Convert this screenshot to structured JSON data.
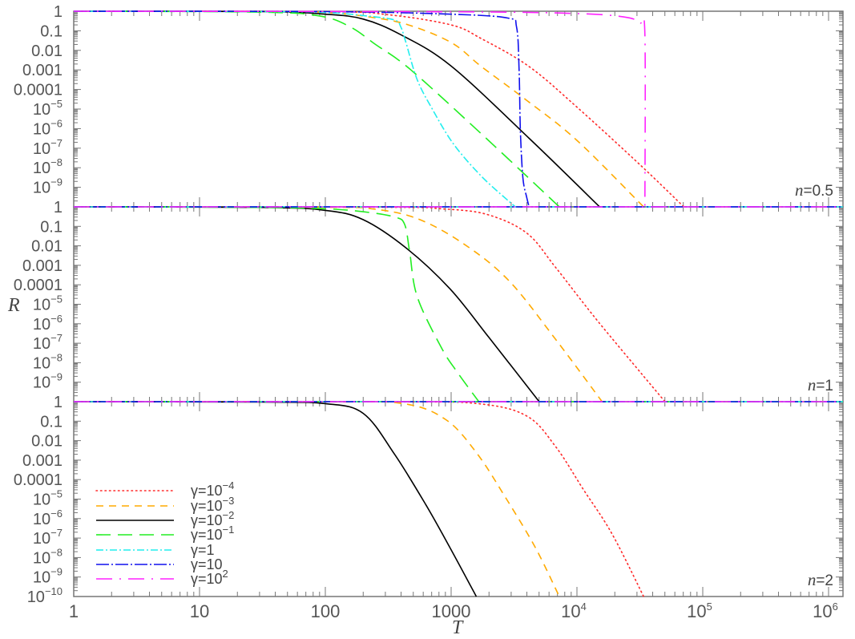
{
  "chart_data": {
    "type": "line",
    "xlabel": "T",
    "ylabel": "R",
    "x_scale": "log",
    "y_scale": "log",
    "xlim": [
      1,
      1300000
    ],
    "ylim": [
      1e-10,
      1
    ],
    "grid": false,
    "legend_placement": "bottom-left of lowest panel",
    "x_tick_labels": [
      {
        "value": 1,
        "base": "1",
        "exp": ""
      },
      {
        "value": 10,
        "base": "10",
        "exp": ""
      },
      {
        "value": 100,
        "base": "100",
        "exp": ""
      },
      {
        "value": 1000,
        "base": "1000",
        "exp": ""
      },
      {
        "value": 10000,
        "base": "10",
        "exp": "4"
      },
      {
        "value": 100000,
        "base": "10",
        "exp": "5"
      },
      {
        "value": 1000000,
        "base": "10",
        "exp": "6"
      }
    ],
    "y_tick_labels": [
      {
        "value": 1,
        "base": "1",
        "exp": ""
      },
      {
        "value": 0.1,
        "base": "0.1",
        "exp": ""
      },
      {
        "value": 0.01,
        "base": "0.01",
        "exp": ""
      },
      {
        "value": 0.001,
        "base": "0.001",
        "exp": ""
      },
      {
        "value": 0.0001,
        "base": "0.0001",
        "exp": ""
      },
      {
        "value": 1e-05,
        "base": "10",
        "exp": "−5"
      },
      {
        "value": 1e-06,
        "base": "10",
        "exp": "−6"
      },
      {
        "value": 1e-07,
        "base": "10",
        "exp": "−7"
      },
      {
        "value": 1e-08,
        "base": "10",
        "exp": "−8"
      },
      {
        "value": 1e-09,
        "base": "10",
        "exp": "−9"
      },
      {
        "value": 1e-10,
        "base": "10",
        "exp": "−10"
      }
    ],
    "legend": [
      {
        "prefix": "γ=",
        "base": "10",
        "exp": "−4",
        "color": "#ff2a2a",
        "dash": "dotted"
      },
      {
        "prefix": "γ=",
        "base": "10",
        "exp": "−3",
        "color": "#ffaa00",
        "dash": "dashed"
      },
      {
        "prefix": "γ=",
        "base": "10",
        "exp": "−2",
        "color": "#000000",
        "dash": "solid"
      },
      {
        "prefix": "γ=",
        "base": "10",
        "exp": "−1",
        "color": "#22ee22",
        "dash": "long-dash"
      },
      {
        "prefix": "γ=",
        "base": "1",
        "exp": "",
        "color": "#22eeee",
        "dash": "dash-dot"
      },
      {
        "prefix": "γ=",
        "base": "10",
        "exp": "",
        "color": "#1010ee",
        "dash": "long-dash-dot"
      },
      {
        "prefix": "γ=",
        "base": "10",
        "exp": "2",
        "color": "#ff22ff",
        "dash": "long-short-dash"
      }
    ],
    "panels": [
      {
        "label_var": "n",
        "label_value": "=0.5",
        "series": [
          {
            "name": "γ=10⁻⁴",
            "points": [
              [
                1,
                1
              ],
              [
                100,
                0.955
              ],
              [
                316,
                0.661
              ],
              [
                1000,
                0.2
              ],
              [
                1738,
                0.0398
              ],
              [
                4169,
                0.00148
              ],
              [
                10000,
                1.26e-05
              ],
              [
                32360,
                1.26e-08
              ],
              [
                70790,
                1e-10
              ]
            ]
          },
          {
            "name": "γ=10⁻³",
            "points": [
              [
                1,
                1
              ],
              [
                31.6,
                0.977
              ],
              [
                100,
                0.871
              ],
              [
                200,
                0.562
              ],
              [
                437,
                0.219
              ],
              [
                1000,
                0.0251
              ],
              [
                1738,
                0.00148
              ],
              [
                3981,
                2.8e-05
              ],
              [
                10000,
                2.5e-07
              ],
              [
                33880,
                1e-10
              ]
            ]
          },
          {
            "name": "γ=10⁻²",
            "points": [
              [
                1,
                1
              ],
              [
                31.6,
                0.955
              ],
              [
                100,
                0.708
              ],
              [
                200,
                0.398
              ],
              [
                398,
                0.063
              ],
              [
                1000,
                0.00158
              ],
              [
                4169,
                3.2e-07
              ],
              [
                15140,
                1e-10
              ]
            ]
          },
          {
            "name": "γ=10⁻¹",
            "points": [
              [
                1,
                1
              ],
              [
                31.6,
                0.891
              ],
              [
                91.2,
                0.562
              ],
              [
                158,
                0.158
              ],
              [
                251,
                0.02
              ],
              [
                479,
                0.001
              ],
              [
                1738,
                5.4e-07
              ],
              [
                7244,
                1e-10
              ]
            ]
          },
          {
            "name": "γ=1",
            "points": [
              [
                1,
                1
              ],
              [
                31.6,
                0.955
              ],
              [
                100,
                0.871
              ],
              [
                219,
                0.562
              ],
              [
                355,
                0.355
              ],
              [
                398,
                0.158
              ],
              [
                437,
                0.0251
              ],
              [
                537,
                0.00032
              ],
              [
                708,
                1e-05
              ],
              [
                1047,
                1.6e-07
              ],
              [
                1778,
                3.2e-09
              ],
              [
                3236,
                1e-10
              ]
            ]
          },
          {
            "name": "γ=10",
            "points": [
              [
                1,
                1
              ],
              [
                100,
                0.955
              ],
              [
                1000,
                0.708
              ],
              [
                2818,
                0.447
              ],
              [
                3311,
                0.158
              ],
              [
                3467,
                0.001
              ],
              [
                3548,
                1e-06
              ],
              [
                3715,
                3.2e-09
              ],
              [
                3981,
                3.2e-10
              ],
              [
                4169,
                1e-10
              ]
            ]
          },
          {
            "name": "γ=10²",
            "points": [
              [
                1,
                1
              ],
              [
                1000,
                0.933
              ],
              [
                10000,
                0.759
              ],
              [
                23990,
                0.501
              ],
              [
                31620,
                0.251
              ],
              [
                34670,
                0.063
              ],
              [
                34670,
                1e-10
              ]
            ]
          }
        ]
      },
      {
        "label_var": "n",
        "label_value": "=1",
        "series": [
          {
            "name": "γ=10⁻⁴",
            "points": [
              [
                1,
                1
              ],
              [
                316,
                0.955
              ],
              [
                832,
                0.794
              ],
              [
                1905,
                0.417
              ],
              [
                3981,
                0.0457
              ],
              [
                6761,
                0.00079
              ],
              [
                14790,
                1.26e-06
              ],
              [
                50120,
                1e-10
              ]
            ]
          },
          {
            "name": "γ=10⁻³",
            "points": [
              [
                1,
                1
              ],
              [
                100,
                0.955
              ],
              [
                234,
                0.794
              ],
              [
                537,
                0.251
              ],
              [
                1259,
                0.0126
              ],
              [
                2884,
                0.00016
              ],
              [
                6761,
                1.6e-07
              ],
              [
                15850,
                1e-10
              ]
            ]
          },
          {
            "name": "γ=10⁻²",
            "points": [
              [
                1,
                1
              ],
              [
                31.6,
                0.933
              ],
              [
                100,
                0.661
              ],
              [
                200,
                0.219
              ],
              [
                437,
                0.0079
              ],
              [
                977,
                6.3e-05
              ],
              [
                1995,
                2e-07
              ],
              [
                5012,
                1e-10
              ]
            ]
          },
          {
            "name": "γ=10⁻¹",
            "points": [
              [
                1,
                1
              ],
              [
                31.6,
                0.933
              ],
              [
                100,
                0.794
              ],
              [
                200,
                0.562
              ],
              [
                355,
                0.302
              ],
              [
                427,
                0.126
              ],
              [
                468,
                0.005
              ],
              [
                537,
                2.5e-05
              ],
              [
                832,
                6.3e-08
              ],
              [
                1122,
                3.2e-09
              ],
              [
                1660,
                1e-10
              ]
            ]
          },
          {
            "name": "γ=1",
            "points": [
              [
                1,
                1
              ],
              [
                1300000,
                1
              ]
            ]
          },
          {
            "name": "γ=10",
            "points": [
              [
                1,
                1
              ],
              [
                1300000,
                1
              ]
            ]
          },
          {
            "name": "γ=10²",
            "points": [
              [
                1,
                1
              ],
              [
                1300000,
                1
              ]
            ]
          }
        ]
      },
      {
        "label_var": "n",
        "label_value": "=2",
        "series": [
          {
            "name": "γ=10⁻⁴",
            "points": [
              [
                1,
                1
              ],
              [
                316,
                0.977
              ],
              [
                1622,
                0.794
              ],
              [
                3981,
                0.186
              ],
              [
                6761,
                0.005
              ],
              [
                11220,
                3.2e-05
              ],
              [
                19050,
                1.6e-07
              ],
              [
                33880,
                1e-10
              ]
            ]
          },
          {
            "name": "γ=10⁻³",
            "points": [
              [
                1,
                1
              ],
              [
                100,
                0.977
              ],
              [
                417,
                0.794
              ],
              [
                912,
                0.117
              ],
              [
                1622,
                0.002
              ],
              [
                2754,
                1e-05
              ],
              [
                4677,
                3.2e-08
              ],
              [
                7244,
                1e-10
              ]
            ]
          },
          {
            "name": "γ=10⁻²",
            "points": [
              [
                1,
                1
              ],
              [
                31.6,
                0.955
              ],
              [
                100,
                0.794
              ],
              [
                200,
                0.251
              ],
              [
                355,
                0.002
              ],
              [
                631,
                5e-06
              ],
              [
                1000,
                2.5e-08
              ],
              [
                1585,
                1e-10
              ]
            ]
          },
          {
            "name": "γ=10⁻¹",
            "points": [
              [
                1,
                1
              ],
              [
                1300000,
                1
              ]
            ]
          },
          {
            "name": "γ=1",
            "points": [
              [
                1,
                1
              ],
              [
                1300000,
                1
              ]
            ]
          },
          {
            "name": "γ=10",
            "points": [
              [
                1,
                1
              ],
              [
                1300000,
                1
              ]
            ]
          },
          {
            "name": "γ=10²",
            "points": [
              [
                1,
                1
              ],
              [
                1300000,
                1
              ]
            ]
          }
        ]
      }
    ]
  }
}
